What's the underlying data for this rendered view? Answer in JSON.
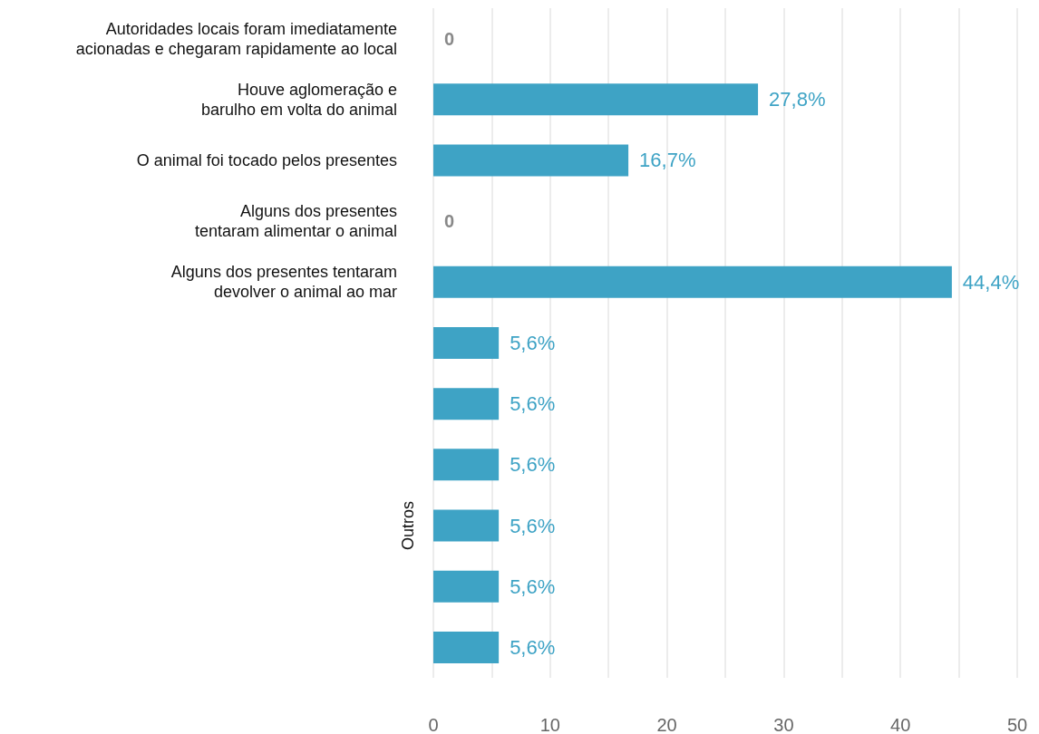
{
  "chart_data": {
    "type": "bar",
    "orientation": "horizontal",
    "categories": [
      "Autoridades locais foram imediatamente\nacionadas e chegaram rapidamente ao local",
      "Houve aglomeração e\nbarulho em volta do animal",
      "O animal foi tocado pelos presentes",
      "Alguns dos presentes\ntentaram alimentar o animal",
      "Alguns dos presentes tentaram\ndevolver o animal ao mar",
      null,
      null,
      null,
      null,
      null,
      null
    ],
    "values": [
      0,
      27.8,
      16.7,
      0,
      44.4,
      5.6,
      5.6,
      5.6,
      5.6,
      5.6,
      5.6
    ],
    "value_labels": [
      "0",
      "27,8%",
      "16,7%",
      "0",
      "44,4%",
      "5,6%",
      "5,6%",
      "5,6%",
      "5,6%",
      "5,6%",
      "5,6%"
    ],
    "color": "#3ea3c5",
    "xlim": [
      0,
      50
    ],
    "xticks": [
      0,
      {
        "value": 5,
        "label": null
      },
      10,
      {
        "value": 15,
        "label": null
      },
      20,
      {
        "value": 25,
        "label": null
      },
      30,
      {
        "value": 35,
        "label": null
      },
      40,
      {
        "value": 45,
        "label": null
      },
      50
    ],
    "grid": "x",
    "annotations": [
      "Outros"
    ]
  }
}
